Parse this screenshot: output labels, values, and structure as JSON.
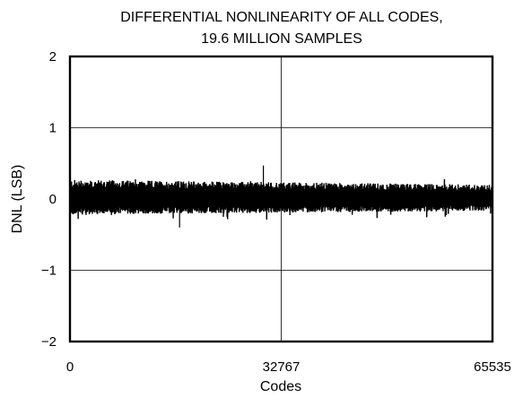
{
  "chart_data": {
    "type": "line",
    "title_lines": [
      "DIFFERENTIAL NONLINEARITY OF ALL CODES,",
      "19.6 MILLION SAMPLES"
    ],
    "xlabel": "Codes",
    "ylabel": "DNL (LSB)",
    "xlim": [
      0,
      65535
    ],
    "ylim": [
      -2,
      2
    ],
    "x_ticks": [
      0,
      32767,
      65535
    ],
    "x_tick_labels": [
      "0",
      "32767",
      "65535"
    ],
    "y_ticks": [
      2,
      1,
      0,
      -1,
      -2
    ],
    "y_tick_labels": [
      "2",
      "1",
      "0",
      "−1",
      "−2"
    ],
    "grid": true,
    "legend": "none",
    "series": [
      {
        "description_values": {
          "typical_envelope": [
            -0.22,
            0.27
          ],
          "max_peak": 0.47,
          "max_peak_code": 30000,
          "min_peak": -0.4
        }
      }
    ]
  },
  "colors": {
    "trace": "#000000",
    "axes": "#000000",
    "grid": "#000000",
    "background": "#ffffff"
  }
}
